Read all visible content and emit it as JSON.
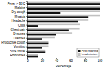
{
  "chart_data": {
    "type": "bar",
    "orientation": "horizontal",
    "xlabel": "Percentage",
    "categories": [
      "Fever > 38 C",
      "Malaise",
      "Dry cough",
      "Myalgia",
      "Headache",
      "Chills",
      "Chest pain",
      "Dyspnea",
      "Diarrhea",
      "Productive cough",
      "Vomiting",
      "Sore throat",
      "Rhinorrhea"
    ],
    "series": [
      {
        "name": "In admission",
        "color": "#c0c0c0",
        "values": [
          100,
          100,
          100,
          100,
          84,
          73,
          72,
          62,
          38,
          29,
          29,
          25,
          15
        ]
      },
      {
        "name": "First reported",
        "color": "#111111",
        "values": [
          100,
          100,
          46,
          84,
          70,
          15,
          57,
          40,
          20,
          29,
          20,
          25,
          15
        ]
      }
    ],
    "xlim": [
      0,
      100
    ],
    "xticks": [
      0,
      20,
      40,
      60,
      80,
      100
    ],
    "legend": "lower right"
  }
}
